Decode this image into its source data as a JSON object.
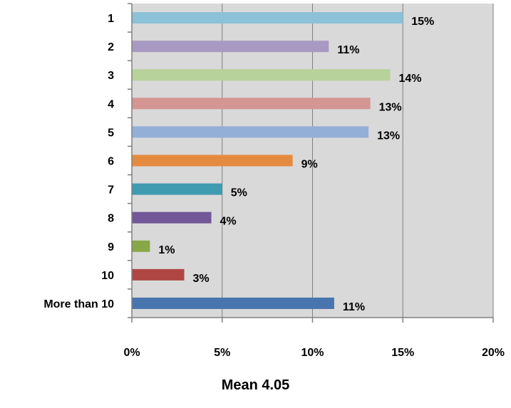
{
  "chart_data": {
    "type": "bar",
    "orientation": "horizontal",
    "categories": [
      "1",
      "2",
      "3",
      "4",
      "5",
      "6",
      "7",
      "8",
      "9",
      "10",
      "More than 10"
    ],
    "values": [
      15,
      11,
      14,
      13,
      13,
      9,
      5,
      4,
      1,
      3,
      11
    ],
    "value_labels": [
      "15%",
      "11%",
      "14%",
      "13%",
      "13%",
      "9%",
      "5%",
      "4%",
      "1%",
      "3%",
      "11%"
    ],
    "bar_values_estimated": [
      15.0,
      10.9,
      14.3,
      13.2,
      13.1,
      8.9,
      5.0,
      4.4,
      1.0,
      2.9,
      11.2
    ],
    "colors": [
      "#8cc1d8",
      "#a899c3",
      "#b7d29a",
      "#d49593",
      "#93afd8",
      "#e58b3f",
      "#3e9bb0",
      "#725898",
      "#88a747",
      "#b04644",
      "#4875ae"
    ],
    "xlim": [
      0,
      20
    ],
    "xticks": [
      "0%",
      "5%",
      "10%",
      "15%",
      "20%"
    ],
    "xtick_values": [
      0,
      5,
      10,
      15,
      20
    ],
    "grid": true,
    "plot_background": "#d9d9d9",
    "legend": "none",
    "title": "",
    "xlabel": "",
    "ylabel": ""
  },
  "footer": {
    "text": "Mean 4.05"
  }
}
